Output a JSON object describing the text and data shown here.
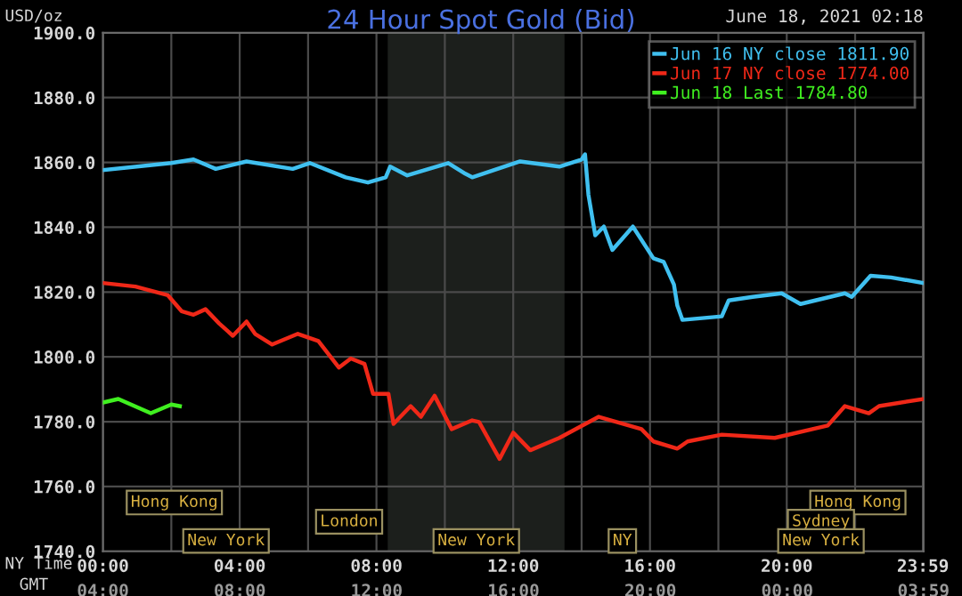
{
  "chart_data": {
    "type": "line",
    "title": "24 Hour Spot Gold (Bid)",
    "ylabel": "USD/oz",
    "xlabel": "NY Time",
    "x2label": "GMT",
    "annotations": [
      "June 18, 2021 02:18",
      "Hong Kong",
      "London",
      "New York",
      "New York",
      "NY",
      "Hong Kong",
      "Sydney",
      "New York"
    ],
    "series": [
      {
        "name": "Jun 16 NY close 1811.90",
        "color": "#40c0f0",
        "x": [
          0,
          2,
          2.65,
          3.3,
          4.2,
          5.55,
          6.05,
          7.1,
          7.75,
          8.27,
          8.4,
          8.9,
          10.1,
          10.6,
          10.8,
          12.2,
          13.35,
          14.0,
          14.1,
          14.2,
          14.4,
          14.65,
          14.9,
          15.5,
          16.1,
          16.4,
          16.7,
          16.8,
          16.95,
          18.1,
          18.3,
          19.0,
          19.85,
          20.4,
          21.7,
          21.9,
          22.45,
          23.05,
          24
        ],
        "values": [
          1857.6,
          1859.8,
          1860.9,
          1858,
          1860.3,
          1858,
          1859.8,
          1855.4,
          1853.8,
          1855.4,
          1858.7,
          1856,
          1859.8,
          1856.5,
          1855.4,
          1860.3,
          1858.7,
          1860.9,
          1862.5,
          1850,
          1837.5,
          1840.2,
          1833,
          1840.2,
          1830.4,
          1829.3,
          1822.3,
          1815.8,
          1811.4,
          1812.5,
          1817.4,
          1818.5,
          1819.6,
          1816.3,
          1819.6,
          1818.5,
          1825,
          1824.5,
          1822.8
        ]
      },
      {
        "name": "Jun 17 NY close 1774.00",
        "color": "#f02818",
        "x": [
          0,
          0.95,
          1.9,
          2.3,
          2.65,
          3.0,
          3.4,
          3.8,
          4.2,
          4.45,
          4.95,
          5.7,
          6.3,
          6.9,
          7.25,
          7.65,
          7.9,
          8.35,
          8.5,
          9.0,
          9.3,
          9.7,
          10.2,
          10.8,
          11.0,
          11.6,
          12.0,
          12.5,
          13.35,
          14.5,
          15.75,
          16.1,
          16.8,
          17.1,
          18.1,
          19.65,
          21.2,
          21.7,
          22.4,
          22.7,
          24
        ],
        "values": [
          1822.8,
          1821.7,
          1819,
          1814.1,
          1813,
          1814.7,
          1810.3,
          1806.5,
          1810.9,
          1807.1,
          1803.8,
          1807.1,
          1804.9,
          1796.7,
          1799.5,
          1797.8,
          1788.6,
          1788.6,
          1779.3,
          1784.8,
          1781.5,
          1788,
          1777.7,
          1780.4,
          1779.9,
          1768.5,
          1776.6,
          1771.2,
          1775,
          1781.5,
          1777.7,
          1773.9,
          1771.7,
          1773.9,
          1776,
          1775,
          1778.8,
          1784.8,
          1782.6,
          1784.8,
          1787
        ]
      },
      {
        "name": "Jun 18 Last 1784.80",
        "color": "#40f020",
        "x": [
          0,
          0.45,
          1.4,
          2.0,
          2.25
        ],
        "values": [
          1785.9,
          1787,
          1782.6,
          1785.3,
          1784.8
        ]
      }
    ],
    "xlim": [
      0,
      24
    ],
    "ylim": [
      1740,
      1900
    ],
    "xticks": [
      {
        "value": 0,
        "label": "00:00"
      },
      {
        "value": 2,
        "label": null
      },
      {
        "value": 4,
        "label": "04:00"
      },
      {
        "value": 6,
        "label": null
      },
      {
        "value": 8,
        "label": "08:00"
      },
      {
        "value": 10,
        "label": null
      },
      {
        "value": 12,
        "label": "12:00"
      },
      {
        "value": 14,
        "label": null
      },
      {
        "value": 16,
        "label": "16:00"
      },
      {
        "value": 18,
        "label": null
      },
      {
        "value": 20,
        "label": "20:00"
      },
      {
        "value": 22,
        "label": null
      },
      {
        "value": 23.983,
        "label": "23:59"
      }
    ],
    "x2lim": [
      "2021-06-18T04:00",
      "2021-06-19T03:59"
    ],
    "x2ticks": [
      {
        "value": "2021-06-18T04:00",
        "label": "04:00"
      },
      {
        "value": "2021-06-18T08:00",
        "label": "08:00"
      },
      {
        "value": "2021-06-18T12:00",
        "label": "12:00"
      },
      {
        "value": "2021-06-18T16:00",
        "label": "16:00"
      },
      {
        "value": "2021-06-18T20:00",
        "label": "20:00"
      },
      {
        "value": "2021-06-19T00:00",
        "label": "00:00"
      },
      {
        "value": "2021-06-19T03:59",
        "label": "03:59"
      }
    ],
    "yticks": [
      {
        "value": 1740,
        "label": "1740.0"
      },
      {
        "value": 1760,
        "label": "1760.0"
      },
      {
        "value": 1780,
        "label": "1780.0"
      },
      {
        "value": 1800,
        "label": "1800.0"
      },
      {
        "value": 1820,
        "label": "1820.0"
      },
      {
        "value": 1840,
        "label": "1840.0"
      },
      {
        "value": 1860,
        "label": "1860.0"
      },
      {
        "value": 1880,
        "label": "1880.0"
      },
      {
        "value": 1900,
        "label": "1900.0"
      }
    ],
    "bands": [
      {
        "axis": "x",
        "from": 8.33,
        "to": 13.5,
        "color": "#1c1f1c"
      }
    ],
    "grid": true,
    "legend": "top right",
    "marker": "none",
    "line_style": "solid"
  }
}
